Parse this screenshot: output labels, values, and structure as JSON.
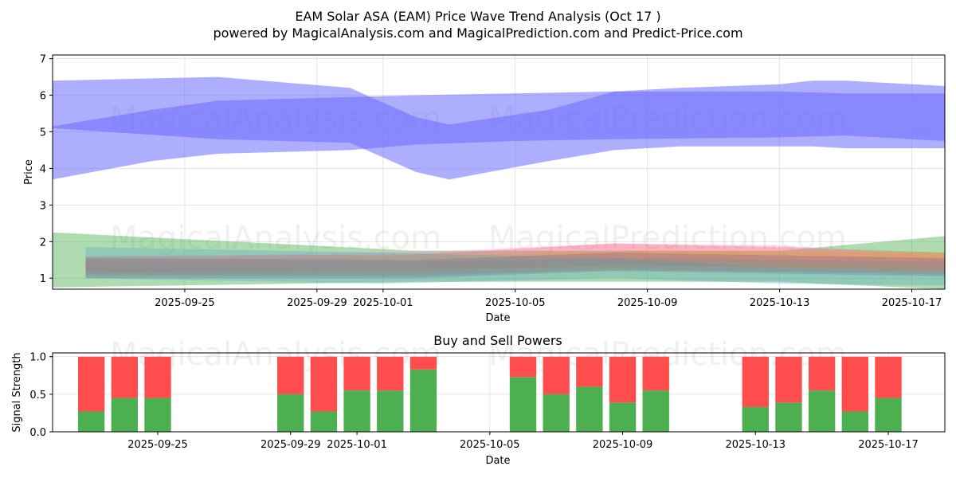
{
  "title": "EAM Solar ASA (EAM) Price Wave Trend Analysis (Oct 17 )",
  "subtitle": "powered by MagicalAnalysis.com and MagicalPrediction.com and Predict-Price.com",
  "watermarks": [
    "MagicalAnalysis.com",
    "MagicalPrediction.com"
  ],
  "chart_data": [
    {
      "type": "area",
      "title": "",
      "xlabel": "Date",
      "ylabel": "Price",
      "ylim": [
        0.7,
        7.1
      ],
      "xlim": [
        "2025-09-21",
        "2025-10-18"
      ],
      "x_ticks": [
        "2025-09-25",
        "2025-09-29",
        "2025-10-01",
        "2025-10-05",
        "2025-10-09",
        "2025-10-13",
        "2025-10-17"
      ],
      "y_ticks": [
        1,
        2,
        3,
        4,
        5,
        6,
        7
      ],
      "grid": true,
      "blue_bands": [
        {
          "name": "blue-band-descending",
          "color": "#6b6bff",
          "x": [
            "2025-09-21",
            "2025-09-26",
            "2025-09-30",
            "2025-10-02",
            "2025-10-03",
            "2025-10-06",
            "2025-10-08",
            "2025-10-10",
            "2025-10-13",
            "2025-10-14",
            "2025-10-15",
            "2025-10-18"
          ],
          "upper": [
            6.4,
            6.5,
            6.2,
            5.4,
            5.2,
            5.6,
            6.1,
            6.2,
            6.3,
            6.4,
            6.4,
            6.25
          ],
          "lower": [
            5.1,
            4.8,
            4.7,
            3.9,
            3.7,
            4.2,
            4.5,
            4.6,
            4.6,
            4.6,
            4.55,
            4.55
          ]
        },
        {
          "name": "blue-band-ascending",
          "color": "#6b6bff",
          "x": [
            "2025-09-21",
            "2025-09-24",
            "2025-09-26",
            "2025-09-30",
            "2025-10-02",
            "2025-10-05",
            "2025-10-08",
            "2025-10-13",
            "2025-10-15",
            "2025-10-18"
          ],
          "upper": [
            5.15,
            5.6,
            5.85,
            5.95,
            6.0,
            6.05,
            6.1,
            6.1,
            6.05,
            6.05
          ],
          "lower": [
            3.7,
            4.2,
            4.4,
            4.5,
            4.65,
            4.75,
            4.8,
            4.85,
            4.9,
            4.75
          ]
        }
      ],
      "low_bands": [
        {
          "name": "green-wide-band",
          "color": "#4caf50",
          "x": [
            "2025-09-21",
            "2025-10-02",
            "2025-10-13",
            "2025-10-18"
          ],
          "upper": [
            2.25,
            1.75,
            1.75,
            2.15
          ],
          "lower": [
            0.75,
            0.9,
            0.9,
            0.7
          ]
        },
        {
          "name": "red-band",
          "color": "#e74c3c",
          "x": [
            "2025-09-22",
            "2025-10-02",
            "2025-10-08",
            "2025-10-13",
            "2025-10-18"
          ],
          "upper": [
            1.6,
            1.65,
            1.95,
            1.85,
            1.7
          ],
          "lower": [
            1.15,
            1.2,
            1.35,
            1.3,
            1.2
          ]
        },
        {
          "name": "pink-band",
          "color": "#ff7fbf",
          "x": [
            "2025-09-22",
            "2025-10-03",
            "2025-10-08",
            "2025-10-13",
            "2025-10-18"
          ],
          "upper": [
            1.55,
            1.75,
            1.95,
            1.9,
            1.6
          ],
          "lower": [
            1.2,
            1.3,
            1.5,
            1.45,
            1.3
          ]
        },
        {
          "name": "orange-band",
          "color": "#f39c12",
          "x": [
            "2025-09-22",
            "2025-10-02",
            "2025-10-09",
            "2025-10-18"
          ],
          "upper": [
            1.5,
            1.6,
            1.75,
            1.7
          ],
          "lower": [
            1.05,
            1.1,
            1.2,
            1.15
          ]
        },
        {
          "name": "purple-band",
          "color": "#7f5aa2",
          "x": [
            "2025-09-22",
            "2025-10-02",
            "2025-10-08",
            "2025-10-18"
          ],
          "upper": [
            1.55,
            1.5,
            1.7,
            1.55
          ],
          "lower": [
            1.0,
            1.0,
            1.2,
            1.05
          ]
        },
        {
          "name": "teal-band",
          "color": "#4aa3c8",
          "x": [
            "2025-09-22",
            "2025-10-01",
            "2025-10-08",
            "2025-10-13",
            "2025-10-18"
          ],
          "upper": [
            1.85,
            1.7,
            1.55,
            1.3,
            1.2
          ],
          "lower": [
            1.0,
            0.85,
            1.0,
            0.85,
            0.8
          ]
        },
        {
          "name": "gray-band",
          "color": "#7f8c8d",
          "x": [
            "2025-09-22",
            "2025-10-02",
            "2025-10-08",
            "2025-10-18"
          ],
          "upper": [
            1.45,
            1.45,
            1.55,
            1.45
          ],
          "lower": [
            1.1,
            1.05,
            1.25,
            1.1
          ]
        }
      ]
    },
    {
      "type": "bar",
      "title": "Buy and Sell Powers",
      "xlabel": "Date",
      "ylabel": "Signal Strength",
      "ylim": [
        0.0,
        1.05
      ],
      "y_ticks": [
        0.0,
        0.5,
        1.0
      ],
      "x_ticks": [
        "2025-09-25",
        "2025-09-29",
        "2025-10-01",
        "2025-10-05",
        "2025-10-09",
        "2025-10-13",
        "2025-10-17"
      ],
      "categories": [
        "2025-09-23",
        "2025-09-24",
        "2025-09-25",
        "2025-09-29",
        "2025-09-30",
        "2025-10-01",
        "2025-10-02",
        "2025-10-03",
        "2025-10-06",
        "2025-10-07",
        "2025-10-08",
        "2025-10-09",
        "2025-10-10",
        "2025-10-13",
        "2025-10-14",
        "2025-10-15",
        "2025-10-16",
        "2025-10-17"
      ],
      "series": [
        {
          "name": "Buy",
          "color": "#4caf50",
          "values": [
            0.27,
            0.45,
            0.45,
            0.5,
            0.27,
            0.55,
            0.55,
            0.83,
            0.73,
            0.5,
            0.6,
            0.39,
            0.55,
            0.33,
            0.39,
            0.55,
            0.27,
            0.45
          ]
        },
        {
          "name": "Sell",
          "color": "#ff4c4c",
          "values": [
            0.73,
            0.55,
            0.55,
            0.5,
            0.73,
            0.45,
            0.45,
            0.17,
            0.27,
            0.5,
            0.4,
            0.61,
            0.45,
            0.67,
            0.61,
            0.45,
            0.73,
            0.55
          ]
        }
      ]
    }
  ]
}
